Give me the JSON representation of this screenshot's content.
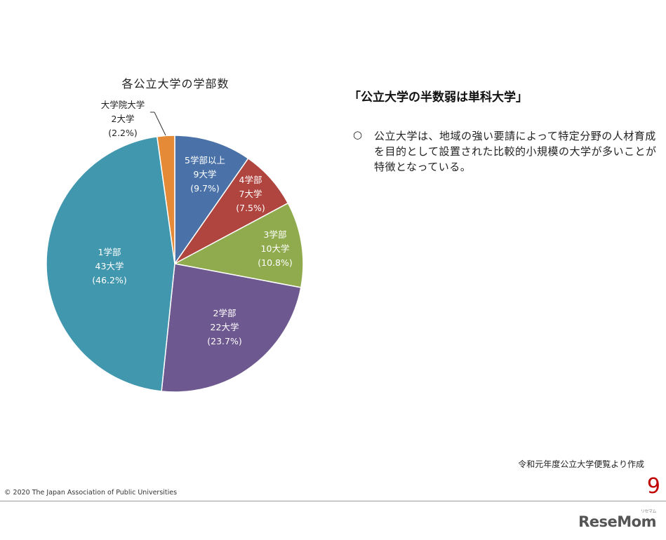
{
  "chart_data": {
    "type": "pie",
    "title": "各公立大学の学部数",
    "slices": [
      {
        "name": "5学部以上",
        "count": "9大学",
        "pct_label": "(9.7%)",
        "value": 9.7,
        "color": "#4a72a8"
      },
      {
        "name": "4学部",
        "count": "7大学",
        "pct_label": "(7.5%)",
        "value": 7.5,
        "color": "#b0443f"
      },
      {
        "name": "3学部",
        "count": "10大学",
        "pct_label": "(10.8%)",
        "value": 10.8,
        "color": "#8fab4d"
      },
      {
        "name": "2学部",
        "count": "22大学",
        "pct_label": "(23.7%)",
        "value": 23.7,
        "color": "#6e5890"
      },
      {
        "name": "1学部",
        "count": "43大学",
        "pct_label": "(46.2%)",
        "value": 46.2,
        "color": "#4197ad"
      },
      {
        "name": "大学院大学",
        "count": "2大学",
        "pct_label": "(2.2%)",
        "value": 2.2,
        "color": "#e58b38"
      }
    ]
  },
  "heading": "「公立大学の半数弱は単科大学」",
  "bullet": {
    "mark": "○",
    "text": "公立大学は、地域の強い要請によって特定分野の人材育成を目的として設置された比較的小規模の大学が多いことが特徴となっている。"
  },
  "source_note": "令和元年度公立大学便覧より作成",
  "page_number": "9",
  "copyright": "©  2020  The Japan Association of Public Universities",
  "watermark": {
    "text": "ReseMom",
    "ruby": "リセマム"
  }
}
